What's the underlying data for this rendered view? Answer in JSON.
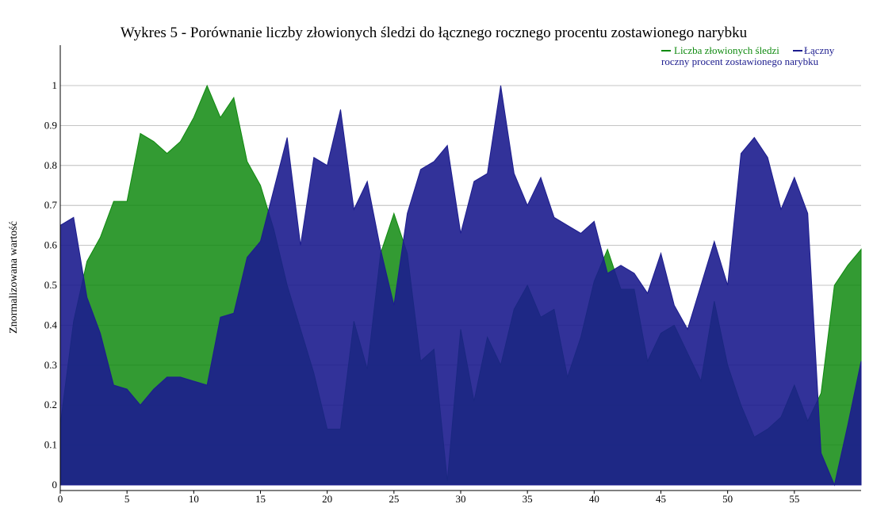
{
  "chart_data": {
    "type": "area",
    "title": "Wykres 5 - Porównanie liczby złowionych śledzi do łącznego rocznego procentu zostawionego narybku",
    "xlabel": "",
    "ylabel": "Znormalizowana wartość",
    "xlim": [
      0,
      60
    ],
    "ylim": [
      0,
      1.0
    ],
    "x_ticks": [
      0,
      5,
      10,
      15,
      20,
      25,
      30,
      35,
      40,
      45,
      50,
      55
    ],
    "y_ticks": [
      0,
      0.1,
      0.2,
      0.3,
      0.4,
      0.5,
      0.6,
      0.7,
      0.8,
      0.9,
      1
    ],
    "grid": true,
    "legend_position": "top-right",
    "series": [
      {
        "name": "Liczba złowionych śledzi",
        "color": "#0f8a0f",
        "x": [
          0,
          1,
          2,
          3,
          4,
          5,
          6,
          7,
          8,
          9,
          10,
          11,
          12,
          13,
          14,
          15,
          16,
          17,
          18,
          19,
          20,
          21,
          22,
          23,
          24,
          25,
          26,
          27,
          28,
          29,
          30,
          31,
          32,
          33,
          34,
          35,
          36,
          37,
          38,
          39,
          40,
          41,
          42,
          43,
          44,
          45,
          46,
          47,
          48,
          49,
          50,
          51,
          52,
          53,
          54,
          55,
          56,
          57,
          58,
          59,
          60
        ],
        "values": [
          0.15,
          0.41,
          0.56,
          0.62,
          0.71,
          0.71,
          0.88,
          0.86,
          0.83,
          0.86,
          0.92,
          1.0,
          0.92,
          0.97,
          0.81,
          0.75,
          0.64,
          0.5,
          0.39,
          0.28,
          0.14,
          0.14,
          0.41,
          0.29,
          0.58,
          0.68,
          0.58,
          0.31,
          0.34,
          0.01,
          0.39,
          0.21,
          0.37,
          0.3,
          0.44,
          0.5,
          0.42,
          0.44,
          0.27,
          0.37,
          0.51,
          0.59,
          0.49,
          0.49,
          0.31,
          0.38,
          0.4,
          0.33,
          0.26,
          0.46,
          0.3,
          0.2,
          0.12,
          0.14,
          0.17,
          0.25,
          0.16,
          0.23,
          0.5,
          0.55,
          0.59
        ]
      },
      {
        "name": "Łączny roczny procent zostawionego narybku",
        "color": "#1c1c8e",
        "x": [
          0,
          1,
          2,
          3,
          4,
          5,
          6,
          7,
          8,
          9,
          10,
          11,
          12,
          13,
          14,
          15,
          16,
          17,
          18,
          19,
          20,
          21,
          22,
          23,
          24,
          25,
          26,
          27,
          28,
          29,
          30,
          31,
          32,
          33,
          34,
          35,
          36,
          37,
          38,
          39,
          40,
          41,
          42,
          43,
          44,
          45,
          46,
          47,
          48,
          49,
          50,
          51,
          52,
          53,
          54,
          55,
          56,
          57,
          58,
          59,
          60
        ],
        "values": [
          0.65,
          0.67,
          0.47,
          0.38,
          0.25,
          0.24,
          0.2,
          0.24,
          0.27,
          0.27,
          0.26,
          0.25,
          0.42,
          0.43,
          0.57,
          0.61,
          0.74,
          0.87,
          0.6,
          0.82,
          0.8,
          0.94,
          0.69,
          0.76,
          0.59,
          0.45,
          0.68,
          0.79,
          0.81,
          0.85,
          0.63,
          0.76,
          0.78,
          1.0,
          0.78,
          0.7,
          0.77,
          0.67,
          0.65,
          0.63,
          0.66,
          0.53,
          0.55,
          0.53,
          0.48,
          0.58,
          0.45,
          0.39,
          0.5,
          0.61,
          0.5,
          0.83,
          0.87,
          0.82,
          0.69,
          0.77,
          0.68,
          0.08,
          0.0,
          0.15,
          0.31
        ]
      }
    ]
  }
}
